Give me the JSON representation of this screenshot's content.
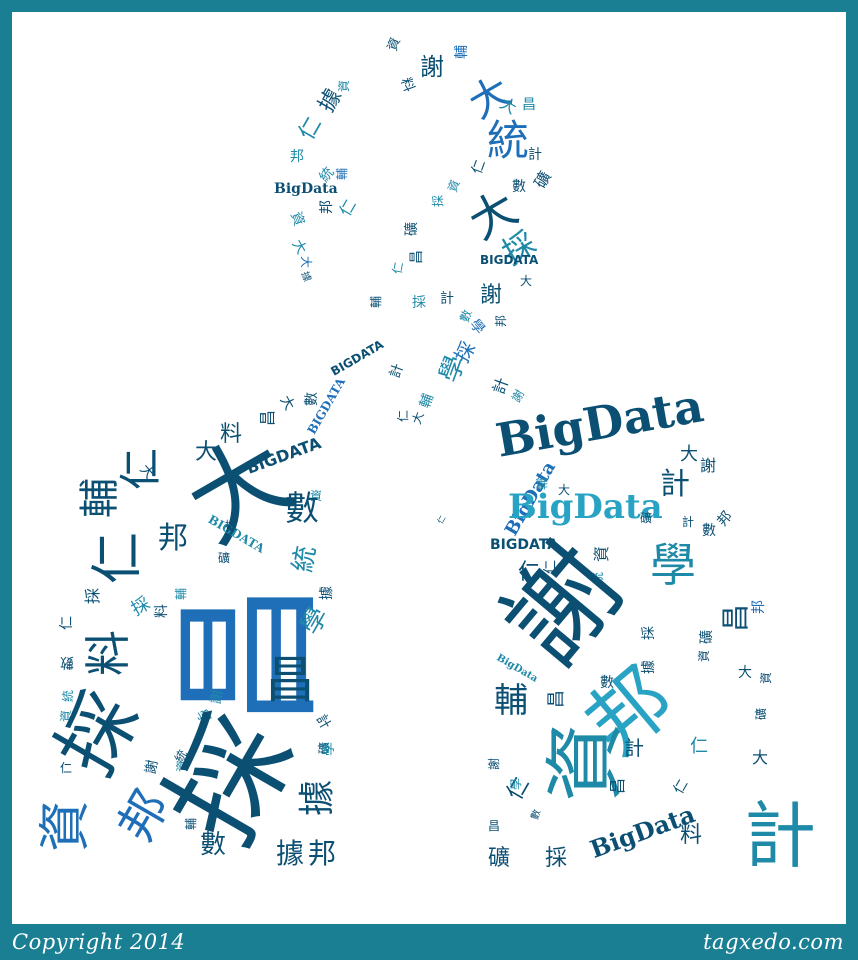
{
  "footer": {
    "copyright": "Copyright 2014",
    "site": "tagxedo.com"
  },
  "colors": {
    "frame": "#1b7f94",
    "background": "#ffffff",
    "palette": [
      "#0b4f73",
      "#1f8aa8",
      "#1e6fb8",
      "#29a3c4",
      "#0f5e86"
    ]
  },
  "words": [
    "大",
    "統",
    "計",
    "數",
    "學",
    "資",
    "料",
    "採",
    "礦",
    "輔",
    "仁",
    "謝",
    "邦",
    "昌",
    "據",
    "BigData",
    "BIGDATA"
  ]
}
